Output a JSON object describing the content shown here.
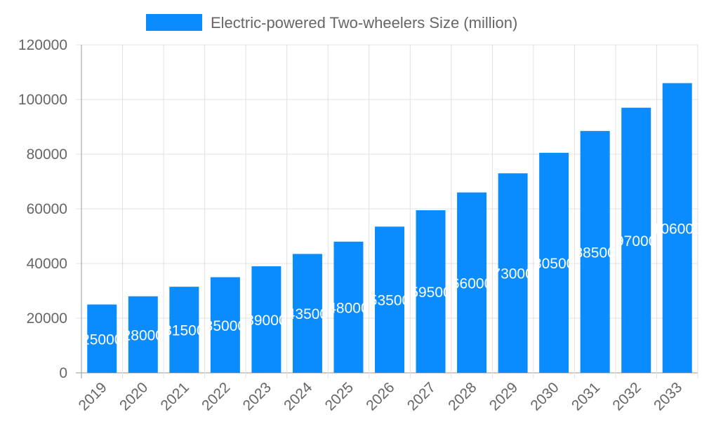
{
  "chart_data": {
    "type": "bar",
    "title": "",
    "xlabel": "",
    "ylabel": "",
    "categories": [
      "2019",
      "2020",
      "2021",
      "2022",
      "2023",
      "2024",
      "2025",
      "2026",
      "2027",
      "2028",
      "2029",
      "2030",
      "2031",
      "2032",
      "2033"
    ],
    "series": [
      {
        "name": "Electric-powered Two-wheelers Size (million)",
        "values": [
          25000,
          28000,
          31500,
          35000,
          39000,
          43500,
          48000,
          53500,
          59500,
          66000,
          73000,
          80500,
          88500,
          97000,
          106000
        ]
      }
    ],
    "ylim": [
      0,
      120000
    ],
    "yticks": [
      0,
      20000,
      40000,
      60000,
      80000,
      100000,
      120000
    ],
    "grid": true,
    "legend": "top-center",
    "data_labels": true,
    "colors": {
      "bar": "#0a8cff",
      "label": "#ffffff",
      "grid": "#e0e0e0",
      "tick": "#666666"
    }
  }
}
